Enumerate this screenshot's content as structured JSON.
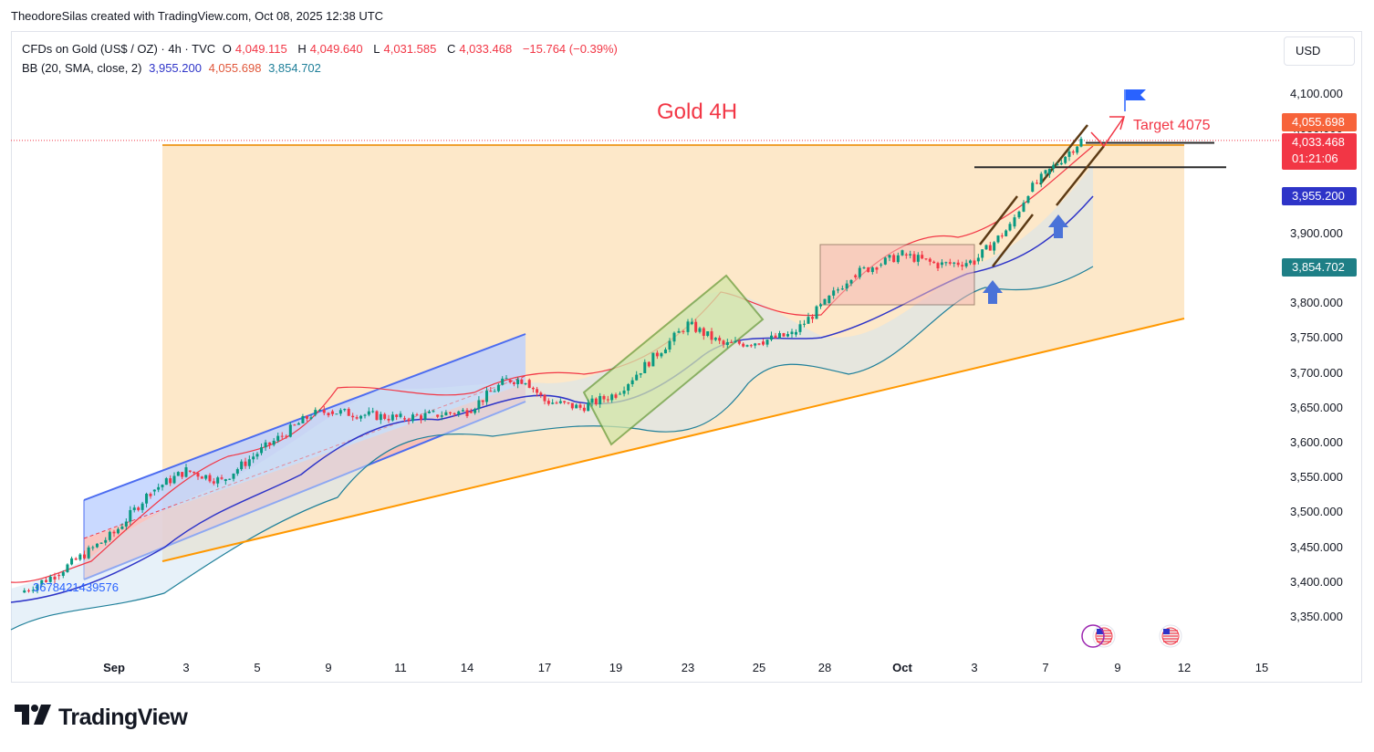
{
  "header": {
    "credit": "TheodoreSilas created with TradingView.com, Oct 08, 2025 12:38 UTC"
  },
  "legend": {
    "symbol": "CFDs on Gold (US$ / OZ) · 4h · TVC",
    "open_label": "O",
    "open": "4,049.115",
    "high_label": "H",
    "high": "4,049.640",
    "low_label": "L",
    "low": "4,031.585",
    "close_label": "C",
    "close": "4,033.468",
    "change": "−15.764 (−0.39%)",
    "bb_label": "BB (20, SMA, close, 2)",
    "bb_basis": "3,955.200",
    "bb_upper": "4,055.698",
    "bb_lower": "3,854.702"
  },
  "currency": "USD",
  "price_axis": [
    "4,100.000",
    "4,050.000",
    "4,000.000",
    "3,950.000",
    "3,900.000",
    "3,850.000",
    "3,800.000",
    "3,750.000",
    "3,700.000",
    "3,650.000",
    "3,600.000",
    "3,550.000",
    "3,500.000",
    "3,450.000",
    "3,400.000",
    "3,350.000"
  ],
  "price_tags": {
    "upper": "4,055.698",
    "last": "4,033.468",
    "countdown": "01:21:06",
    "basis": "3,955.200",
    "lower": "3,854.702"
  },
  "date_axis": [
    "Sep",
    "3",
    "5",
    "9",
    "11",
    "14",
    "17",
    "19",
    "23",
    "25",
    "28",
    "Oct",
    "3",
    "7",
    "9",
    "12",
    "15"
  ],
  "annotations": {
    "title": "Gold 4H",
    "target": "Target 4075",
    "left_label": "3678421439576"
  },
  "brand": "TradingView",
  "colors": {
    "bull": "#089981",
    "bear": "#f23645",
    "bb_basis": "#2e34c8",
    "bb_upper": "#f23645",
    "bb_lower": "#1e7f99",
    "zone": "#fde4c0",
    "trendline": "#ff9800"
  },
  "chart_data": {
    "type": "candlestick",
    "title": "Gold 4H",
    "symbol": "CFDs on Gold (US$ / OZ)",
    "timeframe": "4h",
    "ylim": [
      3330,
      4120
    ],
    "x_range_dates": [
      "Aug 28",
      "Oct 16"
    ],
    "y_scale": "linear",
    "grid": false,
    "last_close": 4033.468,
    "series": [
      {
        "name": "close (approx.)",
        "points": [
          [
            "Aug 28",
            3385
          ],
          [
            "Aug 30",
            3410
          ],
          [
            "Sep 1",
            3470
          ],
          [
            "Sep 2",
            3530
          ],
          [
            "Sep 3",
            3560
          ],
          [
            "Sep 4",
            3545
          ],
          [
            "Sep 5",
            3585
          ],
          [
            "Sep 8",
            3640
          ],
          [
            "Sep 9",
            3645
          ],
          [
            "Sep 10",
            3640
          ],
          [
            "Sep 11",
            3635
          ],
          [
            "Sep 12",
            3640
          ],
          [
            "Sep 14",
            3645
          ],
          [
            "Sep 15",
            3690
          ],
          [
            "Sep 16",
            3690
          ],
          [
            "Sep 17",
            3660
          ],
          [
            "Sep 18",
            3650
          ],
          [
            "Sep 19",
            3670
          ],
          [
            "Sep 22",
            3745
          ],
          [
            "Sep 23",
            3770
          ],
          [
            "Sep 24",
            3740
          ],
          [
            "Sep 25",
            3745
          ],
          [
            "Sep 26",
            3755
          ],
          [
            "Sep 28",
            3800
          ],
          [
            "Sep 29",
            3840
          ],
          [
            "Sep 30",
            3855
          ],
          [
            "Oct 1",
            3870
          ],
          [
            "Oct 2",
            3855
          ],
          [
            "Oct 3",
            3860
          ],
          [
            "Oct 5",
            3910
          ],
          [
            "Oct 6",
            3960
          ],
          [
            "Oct 7",
            3985
          ],
          [
            "Oct 8",
            4033.468
          ]
        ]
      },
      {
        "name": "BB basis (approx.)",
        "points": [
          [
            "Sep 1",
            3420
          ],
          [
            "Sep 9",
            3600
          ],
          [
            "Sep 15",
            3650
          ],
          [
            "Sep 21",
            3690
          ],
          [
            "Sep 27",
            3760
          ],
          [
            "Oct 3",
            3855
          ],
          [
            "Oct 8",
            3955.2
          ]
        ]
      },
      {
        "name": "BB upper (approx.)",
        "points": [
          [
            "Sep 1",
            3455
          ],
          [
            "Sep 9",
            3690
          ],
          [
            "Sep 15",
            3700
          ],
          [
            "Sep 21",
            3730
          ],
          [
            "Sep 27",
            3800
          ],
          [
            "Oct 3",
            3890
          ],
          [
            "Oct 8",
            4055.698
          ]
        ]
      },
      {
        "name": "BB lower (approx.)",
        "points": [
          [
            "Sep 1",
            3375
          ],
          [
            "Sep 9",
            3520
          ],
          [
            "Sep 15",
            3620
          ],
          [
            "Sep 21",
            3605
          ],
          [
            "Sep 27",
            3700
          ],
          [
            "Oct 3",
            3810
          ],
          [
            "Oct 8",
            3854.702
          ]
        ]
      }
    ],
    "levels": [
      4030,
      3995
    ],
    "target": 4075
  }
}
